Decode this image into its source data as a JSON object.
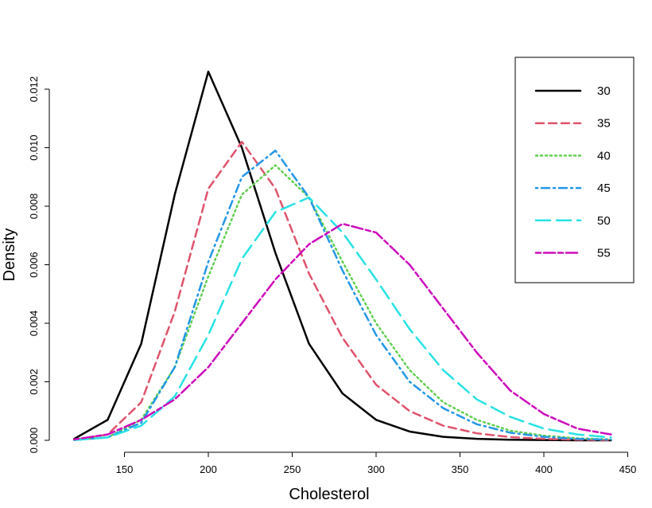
{
  "chart_data": {
    "type": "line",
    "title": "",
    "xlabel": "Cholesterol",
    "ylabel": "Density",
    "xlim": [
      120,
      440
    ],
    "ylim": [
      0,
      0.0126
    ],
    "x_ticks": [
      "150",
      "200",
      "250",
      "300",
      "350",
      "400",
      "450"
    ],
    "y_ticks": [
      "0.000",
      "0.002",
      "0.004",
      "0.006",
      "0.008",
      "0.010",
      "0.012"
    ],
    "grid": false,
    "legend_position": "top-right",
    "x": [
      120,
      140,
      160,
      180,
      200,
      220,
      240,
      260,
      280,
      300,
      320,
      340,
      360,
      380,
      400,
      420,
      440
    ],
    "series": [
      {
        "name": "30",
        "color": "#000000",
        "dash": "solid",
        "values": [
          5e-05,
          0.0007,
          0.0033,
          0.0084,
          0.0126,
          0.01,
          0.0064,
          0.0033,
          0.0016,
          0.0007,
          0.0003,
          0.00012,
          5e-05,
          2e-05,
          1e-05,
          0.0,
          0.0
        ]
      },
      {
        "name": "35",
        "color": "#DF536B",
        "dash": "dashed",
        "values": [
          2e-05,
          0.0002,
          0.0013,
          0.0044,
          0.0086,
          0.0102,
          0.0086,
          0.0057,
          0.0035,
          0.0019,
          0.001,
          0.0005,
          0.00024,
          0.00011,
          5e-05,
          2e-05,
          1e-05
        ]
      },
      {
        "name": "40",
        "color": "#61D04F",
        "dash": "dotted",
        "values": [
          1e-05,
          0.0001,
          0.0007,
          0.0025,
          0.0056,
          0.0084,
          0.0094,
          0.0083,
          0.0061,
          0.004,
          0.0024,
          0.0013,
          0.0007,
          0.00033,
          0.00016,
          7e-05,
          3e-05
        ]
      },
      {
        "name": "45",
        "color": "#2297E6",
        "dash": "dotdash",
        "values": [
          1e-05,
          0.0001,
          0.0006,
          0.0025,
          0.0061,
          0.009,
          0.0099,
          0.0083,
          0.0058,
          0.0036,
          0.002,
          0.0011,
          0.00055,
          0.00026,
          0.00012,
          5e-05,
          2e-05
        ]
      },
      {
        "name": "50",
        "color": "#28E2E5",
        "dash": "longdash",
        "values": [
          1e-05,
          0.0001,
          0.0005,
          0.0015,
          0.0036,
          0.0062,
          0.0078,
          0.0083,
          0.0071,
          0.0055,
          0.0038,
          0.0024,
          0.0014,
          0.0008,
          0.0004,
          0.0002,
          0.0001
        ]
      },
      {
        "name": "55",
        "color": "#CD0BBC",
        "dash": "twodash",
        "values": [
          3e-05,
          0.0002,
          0.0007,
          0.0014,
          0.0025,
          0.004,
          0.0055,
          0.0067,
          0.0074,
          0.0071,
          0.006,
          0.0045,
          0.003,
          0.0017,
          0.0009,
          0.0004,
          0.0002
        ]
      }
    ]
  }
}
